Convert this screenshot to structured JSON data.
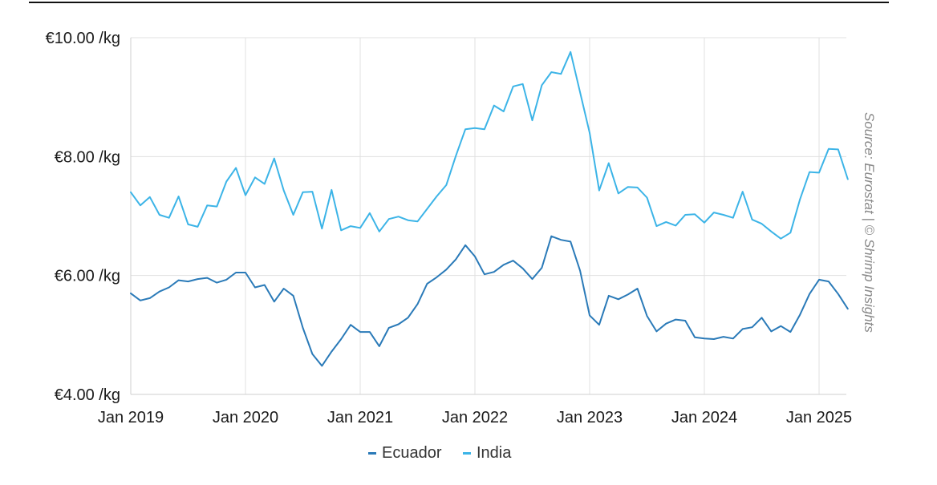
{
  "chart_data": {
    "type": "line",
    "title": "",
    "xlabel": "",
    "ylabel": "",
    "y_tick_labels": [
      "€4.00 /kg",
      "€6.00 /kg",
      "€8.00 /kg",
      "€10.00 /kg"
    ],
    "y_ticks": [
      4,
      6,
      8,
      10
    ],
    "ylim": [
      4,
      10
    ],
    "x_tick_labels": [
      "Jan 2019",
      "Jan 2020",
      "Jan 2021",
      "Jan 2022",
      "Jan 2023",
      "Jan 2024",
      "Jan 2025"
    ],
    "x_range": [
      "Jan 2019",
      "Apr 2025"
    ],
    "grid": true,
    "legend_position": "bottom",
    "source": "Source: Eurostat | © Shrimp Insights",
    "series": [
      {
        "name": "Ecuador",
        "color": "#2a7ab8",
        "values": [
          5.7,
          5.58,
          5.62,
          5.73,
          5.8,
          5.92,
          5.9,
          5.94,
          5.96,
          5.88,
          5.93,
          6.05,
          6.05,
          5.8,
          5.84,
          5.56,
          5.78,
          5.66,
          5.12,
          4.68,
          4.48,
          4.72,
          4.93,
          5.17,
          5.05,
          5.05,
          4.81,
          5.12,
          5.18,
          5.29,
          5.52,
          5.86,
          5.97,
          6.1,
          6.27,
          6.51,
          6.32,
          6.02,
          6.06,
          6.18,
          6.25,
          6.12,
          5.94,
          6.13,
          6.66,
          6.6,
          6.57,
          6.08,
          5.33,
          5.17,
          5.66,
          5.6,
          5.68,
          5.78,
          5.32,
          5.06,
          5.19,
          5.26,
          5.24,
          4.96,
          4.94,
          4.93,
          4.97,
          4.94,
          5.1,
          5.13,
          5.29,
          5.06,
          5.15,
          5.05,
          5.34,
          5.69,
          5.93,
          5.9,
          5.69,
          5.44
        ]
      },
      {
        "name": "India",
        "color": "#3cb4e7",
        "values": [
          7.4,
          7.18,
          7.32,
          7.02,
          6.97,
          7.33,
          6.86,
          6.82,
          7.18,
          7.16,
          7.58,
          7.81,
          7.35,
          7.65,
          7.54,
          7.97,
          7.43,
          7.02,
          7.4,
          7.41,
          6.79,
          7.44,
          6.76,
          6.83,
          6.8,
          7.05,
          6.74,
          6.95,
          6.99,
          6.93,
          6.91,
          7.12,
          7.33,
          7.52,
          8.01,
          8.46,
          8.48,
          8.46,
          8.86,
          8.76,
          9.18,
          9.22,
          8.61,
          9.2,
          9.42,
          9.39,
          9.76,
          9.08,
          8.4,
          7.43,
          7.89,
          7.38,
          7.49,
          7.48,
          7.31,
          6.83,
          6.9,
          6.84,
          7.02,
          7.03,
          6.89,
          7.06,
          7.02,
          6.97,
          7.41,
          6.94,
          6.87,
          6.74,
          6.62,
          6.72,
          7.28,
          7.74,
          7.73,
          8.13,
          8.12,
          7.62
        ]
      }
    ]
  }
}
